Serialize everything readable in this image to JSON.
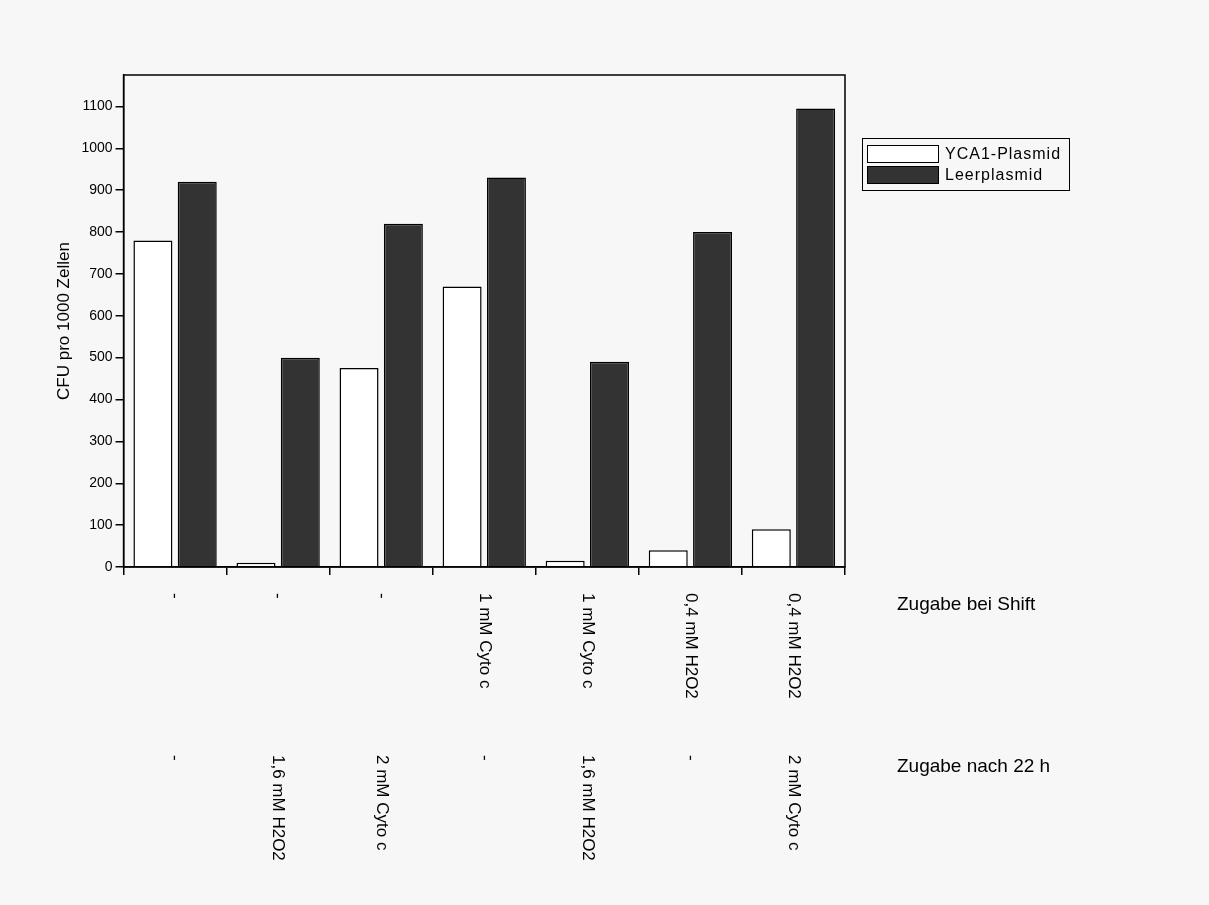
{
  "chart_data": {
    "type": "bar",
    "ylabel": "CFU pro 1000 Zellen",
    "categories": [
      "-\n-",
      "-\n1,6 mM H2O2",
      "-\n2 mM Cyto c",
      "1 mM Cyto c\n-",
      "1 mM Cyto c\n1,6 mM H2O2",
      "0,4 mM H2O2\n-",
      "0,4 mM H2O2\n2 mM Cyto c"
    ],
    "series": [
      {
        "name": "YCA1-Plasmid",
        "color": "#ffffff",
        "values": [
          780,
          10,
          475,
          670,
          15,
          40,
          90
        ]
      },
      {
        "name": "Leerplasmid",
        "color": "#333333",
        "values": [
          920,
          500,
          820,
          930,
          490,
          800,
          1095
        ]
      }
    ],
    "ylim": [
      0,
      1175
    ],
    "yticks": [
      0,
      100,
      200,
      300,
      400,
      500,
      600,
      700,
      800,
      900,
      1000,
      1100
    ],
    "legend": "top right",
    "annotations": [
      "Zugabe bei Shift",
      "Zugabe nach 22 h"
    ]
  }
}
